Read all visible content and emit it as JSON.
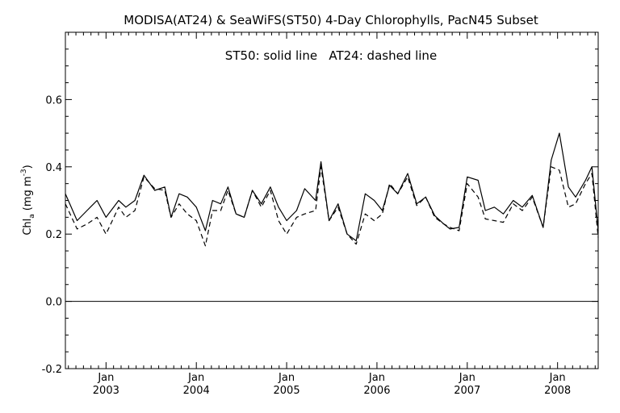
{
  "chart_data": {
    "type": "line",
    "title": "MODISA(AT24) & SeaWiFS(ST50) 4-Day Chlorophylls, PacN45 Subset",
    "annotation": "ST50: solid line   AT24: dashed line",
    "ylabel": "Chl",
    "ylabel_sub": "a",
    "ylabel_units": "(mg m",
    "ylabel_units_sup": "-3",
    "ylabel_close": ")",
    "ylim": [
      -0.2,
      0.8
    ],
    "xlim": [
      2002.55,
      2008.45
    ],
    "x_tick_positions": [
      2003.0,
      2004.0,
      2005.0,
      2006.0,
      2007.0,
      2008.0
    ],
    "x_tick_labels_top": [
      "Jan",
      "Jan",
      "Jan",
      "Jan",
      "Jan",
      "Jan"
    ],
    "x_tick_labels_bottom": [
      "2003",
      "2004",
      "2005",
      "2006",
      "2007",
      "2008"
    ],
    "y_ticks": [
      "-0.2",
      "0.0",
      "0.2",
      "0.4",
      "0.6"
    ],
    "y_tick_values": [
      -0.2,
      0.0,
      0.2,
      0.4,
      0.6
    ],
    "zero_line": true,
    "series": [
      {
        "name": "ST50",
        "style": "solid",
        "x": [
          2002.55,
          2002.68,
          2002.79,
          2002.9,
          2003.0,
          2003.14,
          2003.22,
          2003.32,
          2003.42,
          2003.54,
          2003.65,
          2003.72,
          2003.81,
          2003.9,
          2004.0,
          2004.1,
          2004.18,
          2004.27,
          2004.35,
          2004.44,
          2004.53,
          2004.62,
          2004.72,
          2004.82,
          2004.91,
          2005.0,
          2005.11,
          2005.2,
          2005.32,
          2005.38,
          2005.47,
          2005.57,
          2005.67,
          2005.77,
          2005.87,
          2005.97,
          2006.06,
          2006.14,
          2006.23,
          2006.34,
          2006.44,
          2006.54,
          2006.64,
          2006.74,
          2006.81,
          2006.91,
          2007.0,
          2007.12,
          2007.2,
          2007.3,
          2007.4,
          2007.51,
          2007.61,
          2007.72,
          2007.84,
          2007.93,
          2008.02,
          2008.12,
          2008.2,
          2008.31,
          2008.38,
          2008.45
        ],
        "y": [
          0.32,
          0.24,
          0.27,
          0.3,
          0.25,
          0.3,
          0.28,
          0.3,
          0.375,
          0.33,
          0.34,
          0.25,
          0.32,
          0.31,
          0.28,
          0.21,
          0.3,
          0.29,
          0.34,
          0.26,
          0.25,
          0.33,
          0.29,
          0.34,
          0.28,
          0.24,
          0.27,
          0.335,
          0.3,
          0.415,
          0.24,
          0.29,
          0.2,
          0.18,
          0.32,
          0.3,
          0.27,
          0.345,
          0.32,
          0.38,
          0.29,
          0.31,
          0.255,
          0.23,
          0.215,
          0.22,
          0.37,
          0.36,
          0.27,
          0.28,
          0.26,
          0.3,
          0.28,
          0.315,
          0.22,
          0.42,
          0.5,
          0.34,
          0.31,
          0.36,
          0.4,
          0.21
        ]
      },
      {
        "name": "AT24",
        "style": "dashed",
        "x": [
          2002.55,
          2002.68,
          2002.79,
          2002.9,
          2003.0,
          2003.14,
          2003.22,
          2003.32,
          2003.42,
          2003.54,
          2003.65,
          2003.72,
          2003.81,
          2003.9,
          2004.0,
          2004.1,
          2004.18,
          2004.27,
          2004.35,
          2004.44,
          2004.53,
          2004.62,
          2004.72,
          2004.82,
          2004.91,
          2005.0,
          2005.11,
          2005.2,
          2005.32,
          2005.38,
          2005.47,
          2005.57,
          2005.67,
          2005.77,
          2005.87,
          2005.97,
          2006.06,
          2006.14,
          2006.23,
          2006.34,
          2006.44,
          2006.54,
          2006.64,
          2006.74,
          2006.81,
          2006.91,
          2007.0,
          2007.12,
          2007.2,
          2007.3,
          2007.4,
          2007.51,
          2007.61,
          2007.72,
          2007.84,
          2007.93,
          2008.02,
          2008.12,
          2008.2,
          2008.31,
          2008.38,
          2008.45
        ],
        "y": [
          0.29,
          0.215,
          0.23,
          0.25,
          0.2,
          0.28,
          0.25,
          0.27,
          0.37,
          0.335,
          0.33,
          0.25,
          0.29,
          0.26,
          0.24,
          0.165,
          0.27,
          0.27,
          0.33,
          0.26,
          0.25,
          0.33,
          0.28,
          0.33,
          0.24,
          0.2,
          0.25,
          0.26,
          0.27,
          0.4,
          0.24,
          0.28,
          0.2,
          0.17,
          0.26,
          0.24,
          0.26,
          0.35,
          0.32,
          0.37,
          0.285,
          0.31,
          0.25,
          0.23,
          0.22,
          0.21,
          0.35,
          0.31,
          0.245,
          0.24,
          0.235,
          0.29,
          0.27,
          0.31,
          0.22,
          0.4,
          0.39,
          0.28,
          0.29,
          0.35,
          0.38,
          0.19
        ]
      }
    ]
  }
}
